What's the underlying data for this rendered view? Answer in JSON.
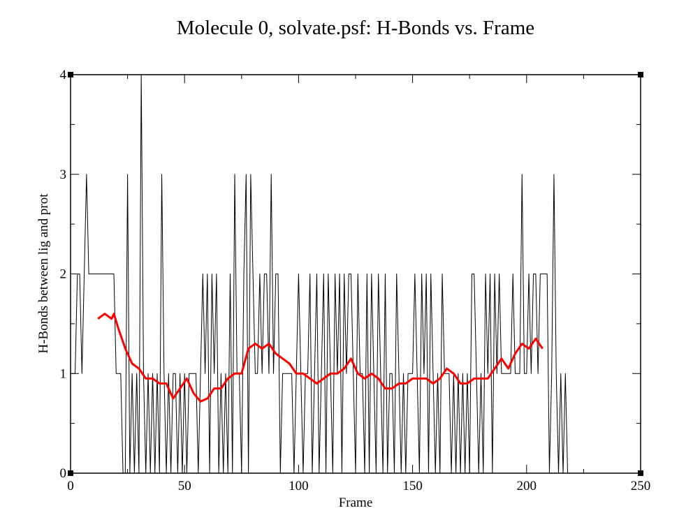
{
  "chart_data": {
    "type": "line",
    "title": "Molecule 0, solvate.psf: H-Bonds vs. Frame",
    "xlabel": "Frame",
    "ylabel": "H-Bonds between lig and prot",
    "xlim": [
      0,
      250
    ],
    "xticks": [
      0,
      50,
      100,
      150,
      200,
      250
    ],
    "xminorticks": [
      25,
      75,
      125,
      175,
      225
    ],
    "ylim": [
      0,
      4
    ],
    "yticks": [
      0,
      1,
      2,
      3,
      4
    ],
    "yminorticks": [
      0.5,
      1.5,
      2.5,
      3.5
    ],
    "grid": false,
    "series": [
      {
        "color": "#000000",
        "x": [
          0,
          1,
          2,
          3,
          4,
          5,
          6,
          7,
          8,
          9,
          10,
          11,
          12,
          13,
          14,
          15,
          16,
          17,
          18,
          19,
          20,
          21,
          22,
          23,
          24,
          25,
          26,
          27,
          28,
          29,
          30,
          31,
          32,
          33,
          34,
          35,
          36,
          37,
          38,
          39,
          40,
          41,
          42,
          43,
          44,
          45,
          46,
          47,
          48,
          49,
          50,
          51,
          52,
          53,
          54,
          55,
          56,
          57,
          58,
          59,
          60,
          61,
          62,
          63,
          64,
          65,
          66,
          67,
          68,
          69,
          70,
          71,
          72,
          73,
          74,
          75,
          76,
          77,
          78,
          79,
          80,
          81,
          82,
          83,
          84,
          85,
          86,
          87,
          88,
          89,
          90,
          91,
          92,
          93,
          94,
          95,
          96,
          97,
          98,
          99,
          100,
          101,
          102,
          103,
          104,
          105,
          106,
          107,
          108,
          109,
          110,
          111,
          112,
          113,
          114,
          115,
          116,
          117,
          118,
          119,
          120,
          121,
          122,
          123,
          124,
          125,
          126,
          127,
          128,
          129,
          130,
          131,
          132,
          133,
          134,
          135,
          136,
          137,
          138,
          139,
          140,
          141,
          142,
          143,
          144,
          145,
          146,
          147,
          148,
          149,
          150,
          151,
          152,
          153,
          154,
          155,
          156,
          157,
          158,
          159,
          160,
          161,
          162,
          163,
          164,
          165,
          166,
          167,
          168,
          169,
          170,
          171,
          172,
          173,
          174,
          175,
          176,
          177,
          178,
          179,
          180,
          181,
          182,
          183,
          184,
          185,
          186,
          187,
          188,
          189,
          190,
          191,
          192,
          193,
          194,
          195,
          196,
          197,
          198,
          199,
          200,
          201,
          202,
          203,
          204,
          205,
          206,
          207,
          208,
          209,
          210,
          211,
          212,
          213,
          214,
          215,
          216,
          217,
          218
        ],
        "values": [
          1,
          1,
          1,
          2,
          2,
          1,
          2,
          3,
          2,
          2,
          2,
          2,
          2,
          2,
          2,
          2,
          2,
          2,
          2,
          2,
          1,
          1,
          1,
          0,
          0,
          3,
          0,
          1,
          0,
          1,
          0,
          4,
          1,
          0,
          1,
          0,
          1,
          0,
          1,
          0,
          3,
          1,
          0,
          1,
          0,
          1,
          1,
          0,
          1,
          0,
          1,
          0,
          1,
          1,
          1,
          1,
          0,
          1,
          2,
          1,
          2,
          0,
          2,
          1,
          2,
          0,
          1,
          0,
          1,
          0,
          2,
          0,
          3,
          1,
          1,
          0,
          2,
          3,
          0,
          3,
          2,
          1,
          1,
          2,
          1,
          2,
          2,
          1,
          3,
          1,
          2,
          2,
          0,
          1,
          1,
          1,
          1,
          1,
          0,
          1,
          2,
          1,
          0,
          1,
          1,
          2,
          0,
          1,
          2,
          0,
          1,
          2,
          0,
          2,
          1,
          0,
          2,
          1,
          2,
          0,
          2,
          1,
          2,
          2,
          1,
          0,
          2,
          1,
          1,
          0,
          2,
          0,
          2,
          1,
          0,
          2,
          1,
          0,
          2,
          0,
          1,
          1,
          0,
          2,
          1,
          0,
          1,
          0,
          1,
          1,
          1,
          2,
          1,
          0,
          2,
          1,
          2,
          0,
          2,
          1,
          0,
          1,
          0,
          2,
          1,
          1,
          1,
          0,
          1,
          0,
          1,
          0,
          1,
          0,
          1,
          0,
          2,
          2,
          1,
          0,
          1,
          0,
          2,
          1,
          2,
          0,
          2,
          1,
          2,
          1,
          1,
          1,
          1,
          1,
          2,
          1,
          1,
          1,
          3,
          1,
          1,
          2,
          1,
          2,
          2,
          1,
          2,
          2,
          2,
          2,
          0,
          1,
          3,
          1,
          0,
          1,
          0,
          1,
          0
        ]
      },
      {
        "color": "#ff0000",
        "x": [
          12,
          15,
          18,
          19,
          21,
          24,
          27,
          30,
          33,
          36,
          39,
          42,
          45,
          48,
          51,
          54,
          57,
          60,
          63,
          66,
          69,
          72,
          75,
          78,
          81,
          84,
          87,
          90,
          93,
          96,
          99,
          102,
          105,
          108,
          111,
          114,
          117,
          120,
          123,
          126,
          129,
          132,
          135,
          138,
          141,
          144,
          147,
          150,
          153,
          156,
          159,
          162,
          165,
          168,
          171,
          174,
          177,
          180,
          183,
          186,
          189,
          192,
          195,
          198,
          201,
          204,
          207
        ],
        "values": [
          1.55,
          1.6,
          1.55,
          1.6,
          1.45,
          1.25,
          1.1,
          1.05,
          0.95,
          0.95,
          0.9,
          0.9,
          0.75,
          0.85,
          0.95,
          0.8,
          0.72,
          0.75,
          0.85,
          0.85,
          0.95,
          1.0,
          1.0,
          1.25,
          1.3,
          1.25,
          1.3,
          1.2,
          1.15,
          1.1,
          1.0,
          1.0,
          0.95,
          0.9,
          0.95,
          1.0,
          1.0,
          1.05,
          1.15,
          1.0,
          0.95,
          1.0,
          0.95,
          0.85,
          0.85,
          0.9,
          0.9,
          0.95,
          0.95,
          0.95,
          0.9,
          0.95,
          1.05,
          1.0,
          0.9,
          0.9,
          0.95,
          0.95,
          0.95,
          1.05,
          1.15,
          1.05,
          1.2,
          1.3,
          1.25,
          1.35,
          1.25
        ]
      }
    ]
  }
}
